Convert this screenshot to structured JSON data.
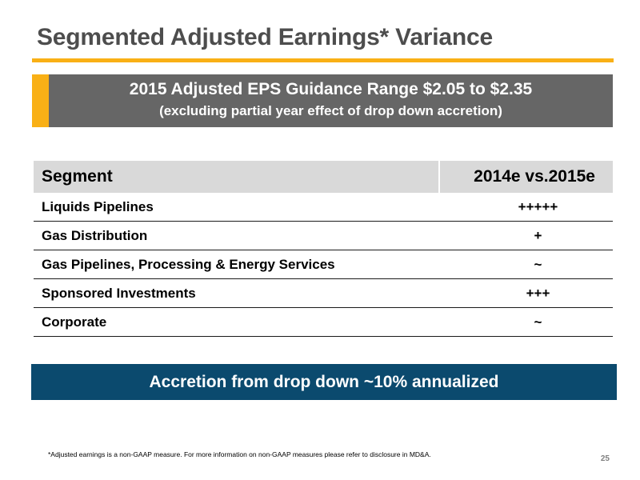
{
  "title": "Segmented Adjusted Earnings* Variance",
  "guidance": {
    "line1": "2015 Adjusted EPS Guidance Range $2.05 to $2.35",
    "line2": "(excluding partial year effect of drop down accretion)"
  },
  "table": {
    "headers": [
      "Segment",
      "2014e vs.2015e"
    ],
    "rows": [
      {
        "segment": "Liquids Pipelines",
        "variance": "+++++"
      },
      {
        "segment": "Gas Distribution",
        "variance": "+"
      },
      {
        "segment": "Gas Pipelines, Processing & Energy Services",
        "variance": "~"
      },
      {
        "segment": "Sponsored Investments",
        "variance": "+++"
      },
      {
        "segment": "Corporate",
        "variance": "~"
      }
    ]
  },
  "banner": "Accretion from drop down ~10% annualized",
  "footnote": "*Adjusted earnings is  a non-GAAP measure. For more information on non-GAAP measures please refer to disclosure in MD&A.",
  "page_number": "25",
  "colors": {
    "accent": "#f9b016",
    "guidance_bg": "#666666",
    "banner_bg": "#0b4a6e",
    "table_header_bg": "#d9d9d9"
  }
}
